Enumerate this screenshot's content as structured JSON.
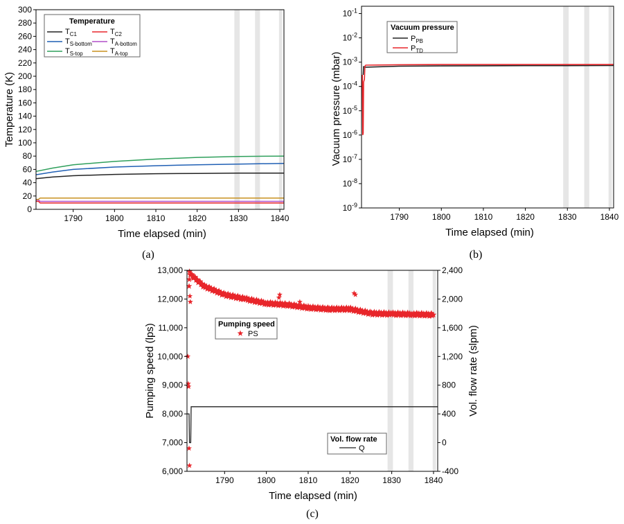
{
  "colors": {
    "black": "#222222",
    "red": "#e8262b",
    "blue": "#1f5fb4",
    "purple": "#b04fc8",
    "green": "#2e9f5b",
    "gold": "#c8901e",
    "shade": "#e6e6e6"
  },
  "chart_data": [
    {
      "id": "a",
      "type": "line",
      "caption": "(a)",
      "xlabel": "Time elapsed (min)",
      "ylabel": "Temperature (K)",
      "xlim": [
        1781,
        1841
      ],
      "ylim": [
        0,
        300
      ],
      "xticks": [
        "1790",
        "1800",
        "1810",
        "1820",
        "1830",
        "1840"
      ],
      "yticks": [
        "0",
        "20",
        "40",
        "60",
        "80",
        "100",
        "120",
        "140",
        "160",
        "180",
        "200",
        "220",
        "240",
        "260",
        "280",
        "300"
      ],
      "shaded_x": [
        [
          1829,
          1830.3
        ],
        [
          1834,
          1835.2
        ],
        [
          1839.8,
          1840.6
        ]
      ],
      "legend": {
        "title": "Temperature",
        "position": "top-left"
      },
      "series": [
        {
          "name": "T",
          "sub": "C1",
          "color": "black",
          "x": [
            1781,
            1785,
            1790,
            1800,
            1810,
            1820,
            1830,
            1841
          ],
          "y": [
            46,
            48.5,
            50.5,
            52.5,
            53.5,
            54,
            54.5,
            54.5
          ]
        },
        {
          "name": "T",
          "sub": "C2",
          "color": "red",
          "x": [
            1781,
            1781.6,
            1782,
            1790,
            1810,
            1841
          ],
          "y": [
            12,
            12,
            9.5,
            9.5,
            9.5,
            9.5
          ]
        },
        {
          "name": "T",
          "sub": "S-bottom",
          "color": "blue",
          "x": [
            1781,
            1785,
            1790,
            1800,
            1810,
            1820,
            1830,
            1841
          ],
          "y": [
            52,
            56,
            60,
            63.5,
            65.5,
            67,
            68,
            69
          ]
        },
        {
          "name": "T",
          "sub": "A-bottom",
          "color": "purple",
          "x": [
            1781,
            1781.6,
            1782,
            1810,
            1841
          ],
          "y": [
            14,
            14,
            12,
            12,
            12
          ]
        },
        {
          "name": "T",
          "sub": "S-top",
          "color": "green",
          "x": [
            1781,
            1785,
            1790,
            1800,
            1810,
            1820,
            1830,
            1841
          ],
          "y": [
            57,
            62,
            67,
            72,
            75.5,
            78,
            79.5,
            80
          ]
        },
        {
          "name": "T",
          "sub": "A-top",
          "color": "gold",
          "x": [
            1781,
            1781.6,
            1782,
            1810,
            1841
          ],
          "y": [
            15,
            15,
            17,
            17,
            17
          ]
        }
      ]
    },
    {
      "id": "b",
      "type": "line",
      "caption": "(b)",
      "xlabel": "Time elapsed (min)",
      "ylabel": "Vacuum pressure (mbar)",
      "yscale": "log",
      "xlim": [
        1781,
        1841
      ],
      "ylim": [
        1e-09,
        0.2
      ],
      "xticks": [
        "1790",
        "1800",
        "1810",
        "1820",
        "1830",
        "1840"
      ],
      "yticks": [
        {
          "base": "10",
          "exp": "-1"
        },
        {
          "base": "10",
          "exp": "-2"
        },
        {
          "base": "10",
          "exp": "-3"
        },
        {
          "base": "10",
          "exp": "-4"
        },
        {
          "base": "10",
          "exp": "-5"
        },
        {
          "base": "10",
          "exp": "-6"
        },
        {
          "base": "10",
          "exp": "-7"
        },
        {
          "base": "10",
          "exp": "-8"
        },
        {
          "base": "10",
          "exp": "-9"
        }
      ],
      "shaded_x": [
        [
          1829,
          1830.3
        ],
        [
          1834,
          1835.2
        ],
        [
          1839.8,
          1840.6
        ]
      ],
      "legend": {
        "title": "Vacuum pressure",
        "position": "top-left"
      },
      "series": [
        {
          "name": "P",
          "sub": "PB",
          "color": "black",
          "x": [
            1781.4,
            1781.5,
            1782,
            1790,
            1800,
            1810,
            1820,
            1830,
            1841
          ],
          "y": [
            0.0003,
            0.00065,
            0.00062,
            0.00068,
            0.0007,
            0.00071,
            0.00072,
            0.00072,
            0.00073
          ]
        },
        {
          "name": "P",
          "sub": "TD",
          "color": "red",
          "x": [
            1781.2,
            1781.3,
            1781.4,
            1781.5,
            1781.7,
            1781.8,
            1782,
            1790,
            1800,
            1810,
            1820,
            1830,
            1841
          ],
          "y": [
            0.0003,
            1e-06,
            1.2e-06,
            0.00015,
            0.0002,
            0.00068,
            0.00075,
            0.00078,
            0.0008,
            0.0008,
            0.0008,
            0.0008,
            0.0008
          ]
        }
      ]
    },
    {
      "id": "c",
      "type": "scatter+line",
      "caption": "(c)",
      "xlabel": "Time elapsed (min)",
      "ylabel": "Pumping speed (lps)",
      "ylabel_right": "Vol. flow rate (slpm)",
      "xlim": [
        1781,
        1841
      ],
      "ylim": [
        6000,
        13000
      ],
      "ylim_right": [
        -400,
        2400
      ],
      "xticks": [
        "1790",
        "1800",
        "1810",
        "1820",
        "1830",
        "1840"
      ],
      "yticks": [
        "6,000",
        "7,000",
        "8,000",
        "9,000",
        "10,000",
        "11,000",
        "12,000",
        "13,000"
      ],
      "yticks_right": [
        "-400",
        "0",
        "400",
        "800",
        "1,200",
        "1,600",
        "2,000",
        "2,400"
      ],
      "shaded_x": [
        [
          1829,
          1830.3
        ],
        [
          1834,
          1835.2
        ],
        [
          1839.8,
          1840.6
        ]
      ],
      "legend_scatter": {
        "title": "Pumping speed",
        "position": "center-left"
      },
      "legend_line": {
        "title": "Vol. flow rate",
        "position": "bottom-right"
      },
      "series": [
        {
          "name": "PS",
          "axis": "left",
          "color": "red",
          "marker": "star",
          "x": [
            1781.5,
            1781.6,
            1782.3,
            1785,
            1790,
            1795,
            1800,
            1805,
            1810,
            1815,
            1820,
            1825,
            1830,
            1835,
            1840
          ],
          "y": [
            12500,
            12900,
            12800,
            12450,
            12150,
            12000,
            11850,
            11800,
            11700,
            11650,
            11650,
            11500,
            11480,
            11470,
            11450
          ]
        },
        {
          "name": "PS-outliers",
          "axis": "left",
          "color": "red",
          "marker": "star",
          "x": [
            1781.2,
            1781.3,
            1781.4,
            1781.5,
            1781.6,
            1781.7,
            1781.8,
            1803,
            1803.2,
            1808,
            1821,
            1821.3
          ],
          "y": [
            10000,
            9050,
            8950,
            6800,
            6200,
            12100,
            11900,
            12050,
            12150,
            11900,
            12200,
            12150
          ]
        },
        {
          "name": "Q",
          "axis": "right",
          "color": "black",
          "x": [
            1781,
            1781.5,
            1781.6,
            1781.9,
            1782,
            1841
          ],
          "y": [
            400,
            400,
            0,
            0,
            500,
            500
          ]
        }
      ]
    }
  ]
}
